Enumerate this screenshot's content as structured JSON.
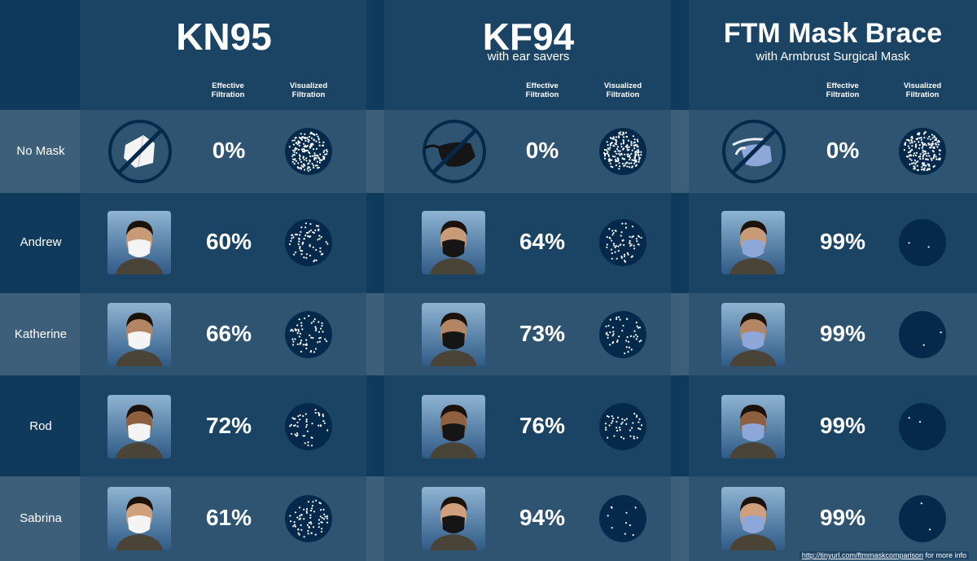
{
  "colors": {
    "dark_row": "#103a5c",
    "light_row": "#3e5f7a",
    "divider": "#082540",
    "dot_fill": "#05294a"
  },
  "column_headers": {
    "effective": "Effective Filtration",
    "visualized": "Visualized Filtration"
  },
  "rows": [
    "No Mask",
    "Andrew",
    "Katherine",
    "Rod",
    "Sabrina"
  ],
  "panels": [
    {
      "title": "KN95",
      "subtitle": "",
      "no_mask_icon": "kn95-mask-icon",
      "values": [
        "0%",
        "60%",
        "66%",
        "72%",
        "61%"
      ],
      "filtration": [
        0,
        0.6,
        0.66,
        0.72,
        0.61
      ],
      "mask_color": "white"
    },
    {
      "title": "KF94",
      "subtitle": "with ear savers",
      "no_mask_icon": "kf94-mask-icon",
      "values": [
        "0%",
        "64%",
        "73%",
        "76%",
        "94%"
      ],
      "filtration": [
        0,
        0.64,
        0.73,
        0.76,
        0.94
      ],
      "mask_color": "black"
    },
    {
      "title": "FTM Mask Brace",
      "subtitle": "with Armbrust Surgical Mask",
      "no_mask_icon": "surgical-mask-brace-icon",
      "values": [
        "0%",
        "99%",
        "99%",
        "99%",
        "99%"
      ],
      "filtration": [
        0,
        0.99,
        0.99,
        0.99,
        0.99
      ],
      "mask_color": "blue"
    }
  ],
  "footer": {
    "link": "http://tinyurl.com/ftmmaskcomparison",
    "text": " for more info"
  }
}
